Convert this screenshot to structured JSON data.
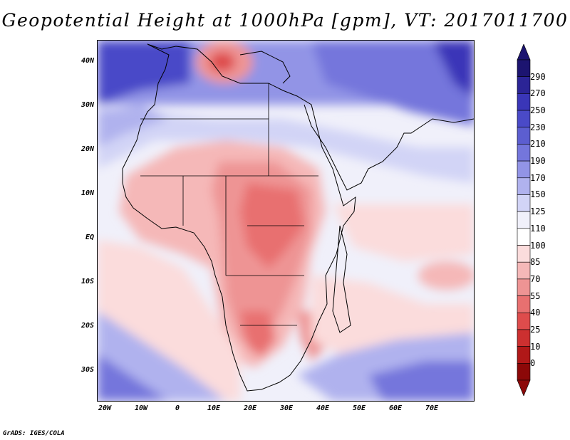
{
  "title": "Geopotential Height at 1000hPa [gpm], VT: 2017011700",
  "footer": "GrADS: IGES/COLA",
  "map": {
    "region": "Africa",
    "lon_range": [
      -25,
      80
    ],
    "lat_range": [
      -37,
      45
    ],
    "lat_ticks": [
      "40N",
      "30N",
      "20N",
      "10N",
      "EQ",
      "10S",
      "20S",
      "30S"
    ],
    "lon_ticks": [
      "20W",
      "10W",
      "0",
      "10E",
      "20E",
      "30E",
      "40E",
      "50E",
      "60E",
      "70E"
    ]
  },
  "colorbar": {
    "levels": [
      "290",
      "270",
      "250",
      "230",
      "210",
      "190",
      "170",
      "150",
      "125",
      "110",
      "100",
      "85",
      "70",
      "55",
      "40",
      "25",
      "10",
      "0"
    ],
    "colors": [
      "#1c1470",
      "#2b2496",
      "#3a36b8",
      "#4a4ac8",
      "#5c5ed0",
      "#7476dc",
      "#9294e6",
      "#b0b2ee",
      "#d2d4f6",
      "#f0f0fa",
      "#ffffff",
      "#fbdcdc",
      "#f5b8b8",
      "#ee9494",
      "#e87070",
      "#de4c4c",
      "#cc3030",
      "#b01818",
      "#8c0808"
    ]
  }
}
